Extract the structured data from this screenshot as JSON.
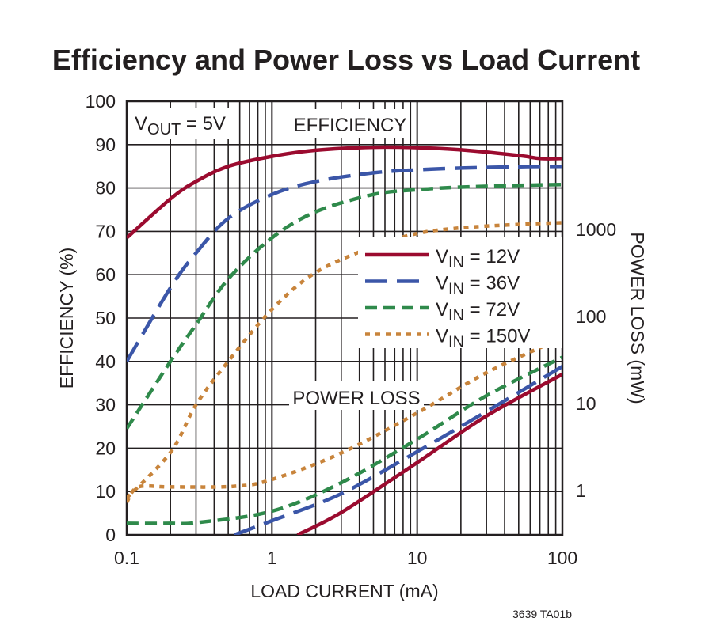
{
  "chart_data": {
    "type": "line",
    "title": "Efficiency and Power Loss vs Load Current",
    "xlabel": "LOAD CURRENT (mA)",
    "ylabel": "EFFICIENCY (%)",
    "y2label": "POWER LOSS (mW)",
    "xscale": "log",
    "xlim": [
      0.1,
      100
    ],
    "ylim": [
      0,
      100
    ],
    "y2scale": "log",
    "x_ticks": [
      "0.1",
      "1",
      "10",
      "100"
    ],
    "y_ticks": [
      "0",
      "10",
      "20",
      "30",
      "40",
      "50",
      "60",
      "70",
      "80",
      "90",
      "100"
    ],
    "y2_ticks": [
      "1",
      "10",
      "100",
      "1000"
    ],
    "grid": true,
    "legend_placement": "center-right",
    "annotations": {
      "vout": {
        "main": "V",
        "sub": "OUT",
        "rest": " = 5V"
      },
      "efficiency": "EFFICIENCY",
      "power_loss": "POWER LOSS"
    },
    "footnote": "3639 TA01b",
    "series": [
      {
        "name": {
          "main": "V",
          "sub": "IN",
          "rest": " = 12V"
        },
        "color": "#9b0b2f",
        "style": "solid",
        "efficiency": {
          "x": [
            0.1,
            0.2,
            0.3,
            0.5,
            1,
            2,
            5,
            10,
            20,
            50,
            70,
            100
          ],
          "y": [
            68.5,
            77.5,
            81.5,
            85,
            87.3,
            88.7,
            89.4,
            89.3,
            88.8,
            87.5,
            86.8,
            86.8
          ]
        },
        "power_loss": {
          "x": [
            1.5,
            3,
            10,
            30,
            100
          ],
          "y": [
            0.31,
            0.56,
            2.1,
            7.2,
            21.7
          ]
        }
      },
      {
        "name": {
          "main": "V",
          "sub": "IN",
          "rest": " = 36V"
        },
        "color": "#3b56a8",
        "style": "long-dash",
        "efficiency": {
          "x": [
            0.1,
            0.2,
            0.3,
            0.5,
            1,
            2,
            5,
            10,
            20,
            50,
            100
          ],
          "y": [
            40,
            57,
            65,
            73,
            78.5,
            81.5,
            83.5,
            84.2,
            84.6,
            84.9,
            85
          ]
        },
        "power_loss": {
          "x": [
            0.55,
            1,
            3,
            10,
            30,
            100
          ],
          "y": [
            0.31,
            0.45,
            0.92,
            2.8,
            8.1,
            26.7
          ]
        }
      },
      {
        "name": {
          "main": "V",
          "sub": "IN",
          "rest": " = 72V"
        },
        "color": "#2f8a4b",
        "style": "dash",
        "efficiency": {
          "x": [
            0.1,
            0.2,
            0.3,
            0.5,
            1,
            2,
            5,
            10,
            20,
            50,
            100
          ],
          "y": [
            24.5,
            40,
            48.5,
            59,
            68.5,
            74.5,
            78.5,
            79.6,
            80.2,
            80.6,
            80.8
          ]
        },
        "power_loss": {
          "x": [
            0.1,
            0.2,
            0.31,
            1,
            3,
            10,
            30,
            100
          ],
          "y": [
            0.42,
            0.42,
            0.43,
            0.58,
            1.23,
            3.9,
            12.3,
            34
          ]
        }
      },
      {
        "name": {
          "main": "V",
          "sub": "IN",
          "rest": " = 150V"
        },
        "color": "#c8843b",
        "style": "dot",
        "efficiency": {
          "x": [
            0.1,
            0.2,
            0.3,
            0.5,
            1,
            2,
            5,
            10,
            20,
            50,
            100
          ],
          "y": [
            8.5,
            19,
            30,
            40,
            52,
            60.5,
            66.5,
            69.5,
            70.8,
            71.6,
            72
          ]
        },
        "power_loss": {
          "x": [
            0.1,
            0.12,
            0.2,
            0.55,
            1,
            3,
            10,
            30,
            100
          ],
          "y": [
            0.73,
            1.1,
            1.1,
            1.12,
            1.34,
            2.7,
            7.8,
            22.6,
            57
          ]
        }
      }
    ]
  }
}
